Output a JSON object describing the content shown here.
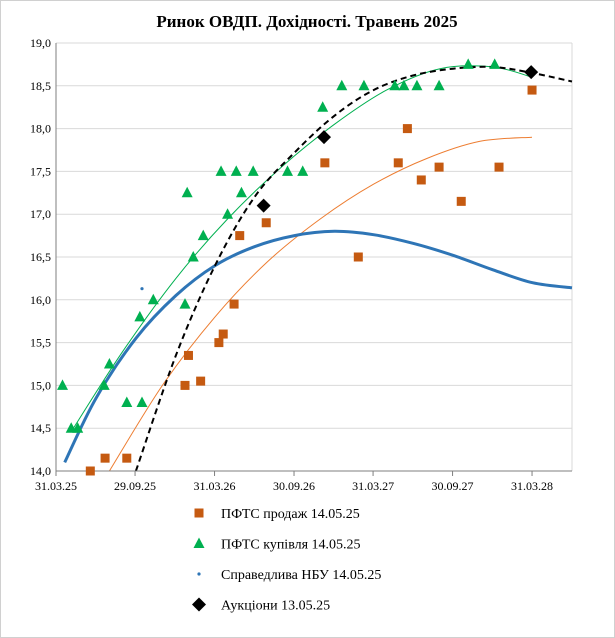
{
  "chart_data": {
    "type": "scatter",
    "title": "Ринок ОВДП. Дохідності. Травень 2025",
    "xlabel": "",
    "ylabel": "",
    "x_ticks": [
      "31.03.25",
      "29.09.25",
      "31.03.26",
      "30.09.26",
      "31.03.27",
      "30.09.27",
      "31.03.28"
    ],
    "x_tick_dates": [
      "2025-03-31",
      "2025-09-29",
      "2026-03-31",
      "2026-09-30",
      "2027-03-31",
      "2027-09-30",
      "2028-03-31"
    ],
    "xlim": [
      "2025-03-31",
      "2028-07-01"
    ],
    "y_ticks": [
      "14,0",
      "14,5",
      "15,0",
      "15,5",
      "16,0",
      "16,5",
      "17,0",
      "17,5",
      "18,0",
      "18,5",
      "19,0"
    ],
    "ylim": [
      14.0,
      19.0
    ],
    "grid": "horizontal",
    "legend_position": "bottom",
    "series": [
      {
        "name": "ПФТС продаж 14.05.25",
        "marker": "square",
        "color": "#C55A11",
        "points": [
          [
            "2025-06-18",
            14.0
          ],
          [
            "2025-07-22",
            14.15
          ],
          [
            "2025-09-10",
            14.15
          ],
          [
            "2026-01-22",
            15.0
          ],
          [
            "2026-01-30",
            15.35
          ],
          [
            "2026-02-27",
            15.05
          ],
          [
            "2026-04-10",
            15.5
          ],
          [
            "2026-04-20",
            15.6
          ],
          [
            "2026-05-15",
            15.95
          ],
          [
            "2026-05-28",
            16.75
          ],
          [
            "2026-07-28",
            16.9
          ],
          [
            "2026-12-10",
            17.6
          ],
          [
            "2027-02-25",
            16.5
          ],
          [
            "2027-05-28",
            17.6
          ],
          [
            "2027-06-18",
            18.0
          ],
          [
            "2027-07-20",
            17.4
          ],
          [
            "2027-08-30",
            17.55
          ],
          [
            "2027-10-20",
            17.15
          ],
          [
            "2028-01-15",
            17.55
          ],
          [
            "2028-03-31",
            18.45
          ]
        ],
        "trend": [
          [
            "2025-08-01",
            14.0
          ],
          [
            "2025-12-01",
            15.0
          ],
          [
            "2026-04-01",
            15.8
          ],
          [
            "2026-08-01",
            16.45
          ],
          [
            "2026-12-01",
            16.95
          ],
          [
            "2027-04-01",
            17.35
          ],
          [
            "2027-08-01",
            17.65
          ],
          [
            "2027-12-01",
            17.85
          ],
          [
            "2028-03-31",
            17.9
          ]
        ]
      },
      {
        "name": "ПФТС купівля 14.05.25",
        "marker": "triangle",
        "color": "#00B050",
        "points": [
          [
            "2025-04-15",
            15.0
          ],
          [
            "2025-05-05",
            14.5
          ],
          [
            "2025-05-20",
            14.5
          ],
          [
            "2025-07-20",
            15.0
          ],
          [
            "2025-08-01",
            15.25
          ],
          [
            "2025-09-10",
            14.8
          ],
          [
            "2025-10-10",
            15.8
          ],
          [
            "2025-10-15",
            14.8
          ],
          [
            "2025-11-10",
            16.0
          ],
          [
            "2026-01-22",
            15.95
          ],
          [
            "2026-01-27",
            17.25
          ],
          [
            "2026-02-10",
            16.5
          ],
          [
            "2026-03-05",
            16.75
          ],
          [
            "2026-04-15",
            17.5
          ],
          [
            "2026-04-30",
            17.0
          ],
          [
            "2026-05-20",
            17.5
          ],
          [
            "2026-06-01",
            17.25
          ],
          [
            "2026-06-28",
            17.5
          ],
          [
            "2026-09-15",
            17.5
          ],
          [
            "2026-10-20",
            17.5
          ],
          [
            "2026-12-05",
            18.25
          ],
          [
            "2027-01-18",
            18.5
          ],
          [
            "2027-03-10",
            18.5
          ],
          [
            "2027-05-20",
            18.5
          ],
          [
            "2027-06-10",
            18.5
          ],
          [
            "2027-07-10",
            18.5
          ],
          [
            "2027-08-30",
            18.5
          ],
          [
            "2027-11-05",
            18.75
          ],
          [
            "2028-01-05",
            18.75
          ]
        ],
        "trend": [
          [
            "2025-05-10",
            14.5
          ],
          [
            "2025-09-01",
            15.4
          ],
          [
            "2026-01-01",
            16.25
          ],
          [
            "2026-05-01",
            16.95
          ],
          [
            "2026-09-01",
            17.55
          ],
          [
            "2027-01-01",
            18.05
          ],
          [
            "2027-05-01",
            18.45
          ],
          [
            "2027-09-01",
            18.7
          ],
          [
            "2028-01-01",
            18.72
          ],
          [
            "2028-03-31",
            18.6
          ]
        ]
      },
      {
        "name": "Справедлива НБУ 14.05.25",
        "marker": "dot",
        "color": "#2E75B6",
        "points": [
          [
            "2025-10-15",
            16.13
          ]
        ],
        "trend": [
          [
            "2025-04-20",
            14.1
          ],
          [
            "2025-07-01",
            14.85
          ],
          [
            "2025-10-01",
            15.55
          ],
          [
            "2026-01-01",
            16.05
          ],
          [
            "2026-04-01",
            16.4
          ],
          [
            "2026-07-01",
            16.62
          ],
          [
            "2026-10-01",
            16.75
          ],
          [
            "2027-01-01",
            16.8
          ],
          [
            "2027-04-01",
            16.76
          ],
          [
            "2027-07-01",
            16.66
          ],
          [
            "2027-10-01",
            16.52
          ],
          [
            "2028-01-01",
            16.35
          ],
          [
            "2028-04-01",
            16.2
          ],
          [
            "2028-07-01",
            16.14
          ]
        ]
      },
      {
        "name": "Аукціони 13.05.25",
        "marker": "diamond",
        "color": "#000000",
        "points": [
          [
            "2026-07-22",
            17.1
          ],
          [
            "2026-12-08",
            17.9
          ],
          [
            "2028-03-29",
            18.66
          ]
        ],
        "trend": [
          [
            "2025-10-01",
            14.0
          ],
          [
            "2026-01-01",
            15.35
          ],
          [
            "2026-04-01",
            16.4
          ],
          [
            "2026-07-01",
            17.2
          ],
          [
            "2026-10-01",
            17.72
          ],
          [
            "2027-01-01",
            18.15
          ],
          [
            "2027-04-01",
            18.45
          ],
          [
            "2027-07-01",
            18.62
          ],
          [
            "2027-10-01",
            18.7
          ],
          [
            "2028-01-01",
            18.72
          ],
          [
            "2028-04-01",
            18.65
          ],
          [
            "2028-07-01",
            18.55
          ]
        ]
      }
    ]
  }
}
